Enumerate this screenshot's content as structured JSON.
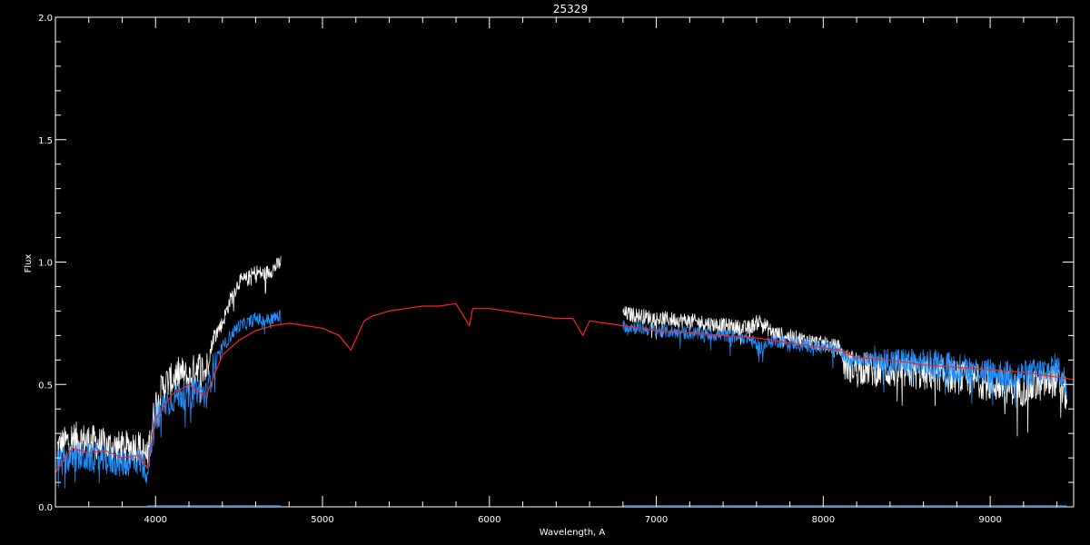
{
  "chart_data": {
    "type": "line",
    "title": "25329",
    "xlabel": "Wavelength, A",
    "ylabel": "Flux",
    "xlim": [
      3400,
      9500
    ],
    "ylim": [
      0.0,
      2.0
    ],
    "xticks": [
      4000,
      5000,
      6000,
      7000,
      8000,
      9000
    ],
    "xtick_labels": [
      "4000",
      "5000",
      "6000",
      "7000",
      "8000",
      "9000"
    ],
    "yticks": [
      0.0,
      0.5,
      1.0,
      1.5,
      2.0
    ],
    "ytick_labels": [
      "0.0",
      "0.5",
      "1.0",
      "1.5",
      "2.0"
    ],
    "xminor_step": 200,
    "yminor_step": 0.1,
    "grid": false,
    "series": [
      {
        "color": "#ffffff",
        "style": "noisy",
        "noise": 0.07,
        "segments": [
          {
            "x": [
              3410,
              3500,
              3600,
              3700,
              3800,
              3900,
              3950,
              4000,
              4050,
              4100,
              4150,
              4200,
              4250,
              4300,
              4350,
              4400,
              4450,
              4500,
              4550,
              4600,
              4650,
              4700,
              4750
            ],
            "y": [
              0.24,
              0.28,
              0.27,
              0.25,
              0.24,
              0.25,
              0.2,
              0.42,
              0.5,
              0.52,
              0.55,
              0.52,
              0.58,
              0.55,
              0.7,
              0.75,
              0.85,
              0.92,
              0.93,
              0.96,
              0.95,
              0.97,
              1.0
            ]
          },
          {
            "x": [
              6800,
              6900,
              7000,
              7200,
              7400,
              7550,
              7620,
              7700,
              7900,
              8100,
              8130,
              8300,
              8500,
              8700,
              8900,
              9000,
              9100,
              9200,
              9300,
              9400,
              9460
            ],
            "y": [
              0.79,
              0.78,
              0.77,
              0.76,
              0.74,
              0.73,
              0.76,
              0.71,
              0.68,
              0.65,
              0.58,
              0.56,
              0.55,
              0.54,
              0.52,
              0.5,
              0.49,
              0.48,
              0.5,
              0.52,
              0.45
            ]
          }
        ]
      },
      {
        "color": "#1e90ff",
        "style": "noisy",
        "noise": 0.06,
        "segments": [
          {
            "x": [
              3410,
              3500,
              3600,
              3700,
              3800,
              3900,
              3950,
              4000,
              4050,
              4100,
              4150,
              4200,
              4250,
              4300,
              4350,
              4400,
              4450,
              4500,
              4550,
              4600,
              4650,
              4700,
              4750
            ],
            "y": [
              0.18,
              0.2,
              0.2,
              0.19,
              0.18,
              0.19,
              0.15,
              0.35,
              0.42,
              0.44,
              0.46,
              0.45,
              0.48,
              0.45,
              0.58,
              0.65,
              0.7,
              0.74,
              0.75,
              0.77,
              0.76,
              0.77,
              0.78
            ]
          },
          {
            "x": [
              6800,
              6900,
              7000,
              7200,
              7400,
              7550,
              7620,
              7700,
              7900,
              8100,
              8130,
              8300,
              8500,
              8700,
              8900,
              9000,
              9100,
              9200,
              9300,
              9400,
              9460
            ],
            "y": [
              0.74,
              0.73,
              0.72,
              0.71,
              0.7,
              0.69,
              0.65,
              0.68,
              0.66,
              0.64,
              0.61,
              0.6,
              0.59,
              0.58,
              0.56,
              0.55,
              0.54,
              0.54,
              0.55,
              0.57,
              0.5
            ]
          },
          {
            "x": [
              3950,
              4750
            ],
            "y": [
              0.005,
              0.005
            ]
          },
          {
            "x": [
              6800,
              9460
            ],
            "y": [
              0.005,
              0.005
            ]
          }
        ]
      },
      {
        "color": "#ff2020",
        "style": "smooth",
        "segments": [
          {
            "x": [
              3400,
              3450,
              3500,
              3600,
              3700,
              3800,
              3900,
              3950,
              4000,
              4100,
              4200,
              4300,
              4400,
              4500,
              4600,
              4700,
              4800,
              4900,
              5000,
              5100,
              5170,
              5250,
              5300,
              5400,
              5500,
              5600,
              5700,
              5800,
              5880,
              5900,
              6000,
              6100,
              6200,
              6300,
              6400,
              6500,
              6560,
              6600,
              6700,
              6800,
              6900,
              7000,
              7200,
              7400,
              7600,
              7800,
              8000,
              8100,
              8200,
              8400,
              8600,
              8800,
              9000,
              9200,
              9400,
              9500
            ],
            "y": [
              0.14,
              0.19,
              0.24,
              0.22,
              0.23,
              0.2,
              0.21,
              0.16,
              0.36,
              0.46,
              0.5,
              0.45,
              0.62,
              0.68,
              0.72,
              0.74,
              0.75,
              0.74,
              0.73,
              0.7,
              0.64,
              0.76,
              0.78,
              0.8,
              0.81,
              0.82,
              0.82,
              0.83,
              0.74,
              0.81,
              0.81,
              0.8,
              0.79,
              0.78,
              0.77,
              0.77,
              0.7,
              0.76,
              0.75,
              0.74,
              0.73,
              0.72,
              0.71,
              0.7,
              0.69,
              0.67,
              0.65,
              0.64,
              0.61,
              0.6,
              0.58,
              0.57,
              0.56,
              0.55,
              0.53,
              0.52
            ]
          }
        ]
      }
    ]
  }
}
